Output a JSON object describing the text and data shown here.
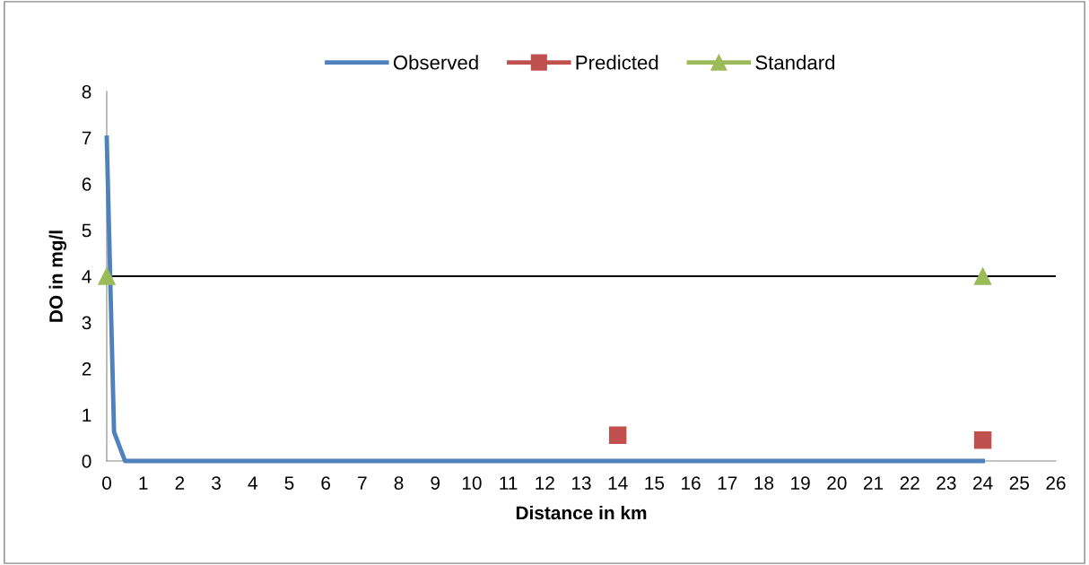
{
  "chart_data": {
    "type": "line",
    "xlabel": "Distance in km",
    "ylabel": "DO in mg/l",
    "xlim": [
      0,
      26
    ],
    "xticks": [
      0,
      1,
      2,
      3,
      4,
      5,
      6,
      7,
      8,
      9,
      10,
      11,
      12,
      13,
      14,
      15,
      16,
      17,
      18,
      19,
      20,
      21,
      22,
      23,
      24,
      25,
      26
    ],
    "ylim": [
      0,
      8
    ],
    "yticks": [
      0,
      1,
      2,
      3,
      4,
      5,
      6,
      7,
      8
    ],
    "grid": false,
    "legend": "top",
    "series": [
      {
        "name": "Observed",
        "color": "#4f81bd",
        "x": [
          0,
          0.2,
          0.5,
          24
        ],
        "values": [
          7.0,
          0.63,
          0,
          0
        ],
        "marker": "none"
      },
      {
        "name": "Predicted",
        "type": "scatter",
        "color": "#c0504d",
        "x": [
          14,
          24
        ],
        "values": [
          0.56,
          0.45
        ],
        "marker": "square"
      },
      {
        "name": "Standard",
        "type": "scatter",
        "color": "#9bbb59",
        "x": [
          0,
          24
        ],
        "values": [
          4,
          4
        ],
        "marker": "triangle"
      }
    ],
    "ref_lines": [
      {
        "axis": "y",
        "value": 4,
        "color": "#000000"
      }
    ]
  }
}
